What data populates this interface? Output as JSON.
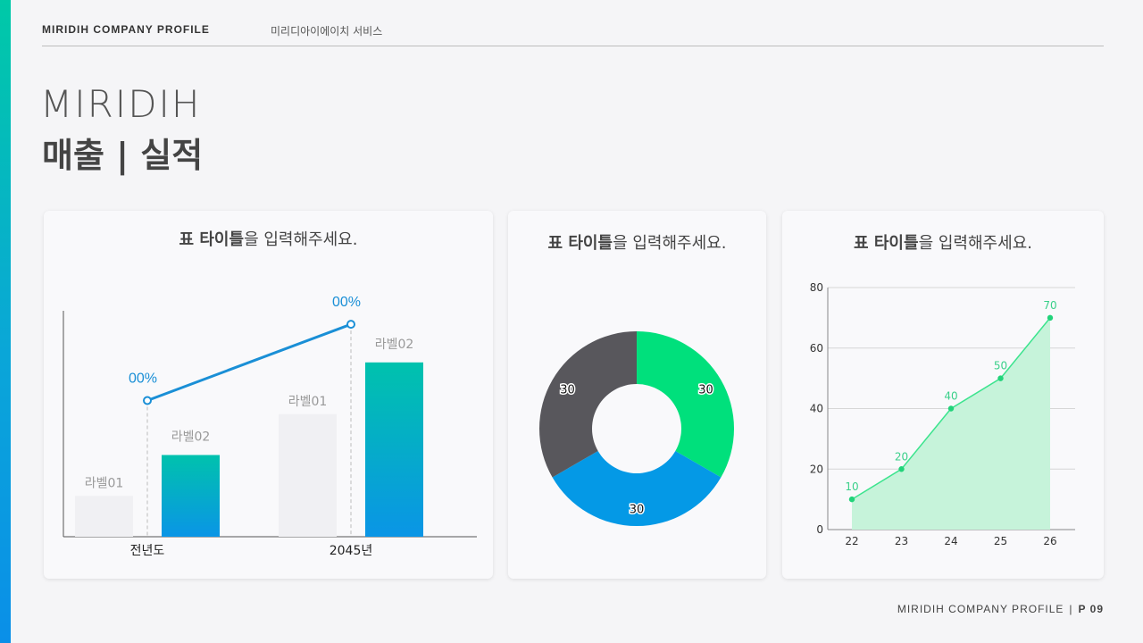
{
  "header": {
    "company": "MIRIDIH COMPANY PROFILE",
    "subtitle": "미리디아이에이치 서비스"
  },
  "title": {
    "en": "MIRIDIH",
    "ko": "매출 | 실적"
  },
  "footer": {
    "company": "MIRIDIH COMPANY PROFILE",
    "separator": "|",
    "page": "P 09"
  },
  "colors": {
    "accent_teal": "#00c2ad",
    "accent_blue": "#0a95e6",
    "line_blue": "#1a8fd6",
    "donut_green": "#00e07c",
    "donut_blue": "#0499e6",
    "donut_gray": "#58575c",
    "line_green": "#3ce48e"
  },
  "chart_data": [
    {
      "type": "bar",
      "title_bold": "표 타이틀",
      "title_rest": "을 입력해주세요.",
      "categories": [
        "전년도",
        "2045년"
      ],
      "series": [
        {
          "name": "라벨01",
          "values": [
            15,
            45
          ]
        },
        {
          "name": "라벨02",
          "values": [
            30,
            64
          ]
        }
      ],
      "line_labels": [
        "00%",
        "00%"
      ],
      "line_values": [
        50,
        78
      ]
    },
    {
      "type": "pie",
      "title_bold": "표 타이틀",
      "title_rest": "을 입력해주세요.",
      "values": [
        30,
        30,
        30
      ],
      "colors": [
        "#00e07c",
        "#0499e6",
        "#58575c"
      ]
    },
    {
      "type": "area",
      "title_bold": "표 타이틀",
      "title_rest": "을 입력해주세요.",
      "x": [
        "22",
        "23",
        "24",
        "25",
        "26"
      ],
      "values": [
        10,
        20,
        40,
        50,
        70
      ],
      "ylim": [
        0,
        80
      ],
      "yticks": [
        "0",
        "20",
        "40",
        "60",
        "80"
      ],
      "grid": true
    }
  ]
}
